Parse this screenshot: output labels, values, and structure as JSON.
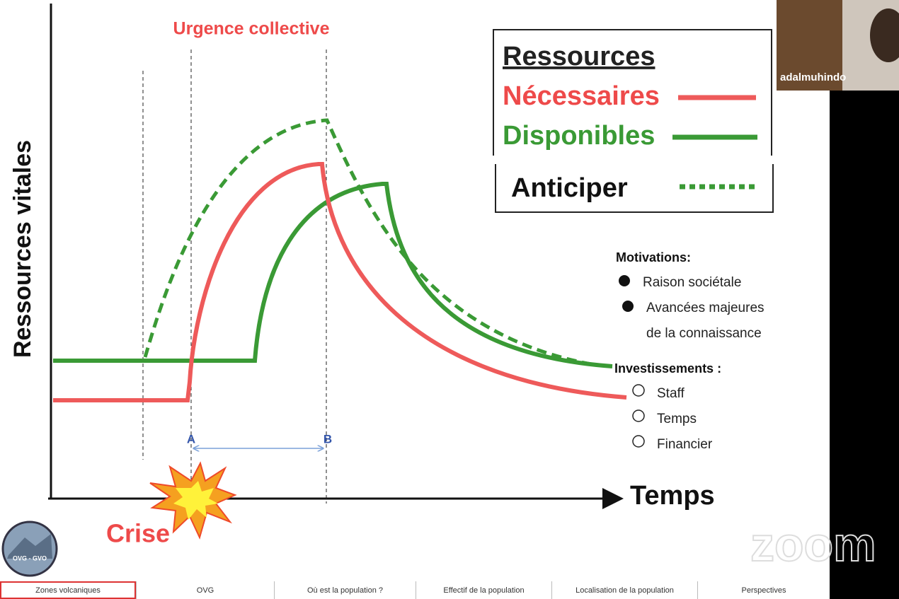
{
  "slide": {
    "title": "Urgence collective",
    "y_axis_label": "Ressources vitales",
    "x_axis_label": "Temps",
    "event": "Crise",
    "markers": [
      "A",
      "B"
    ],
    "legend": {
      "title": "Ressources",
      "items": [
        "Nécessaires",
        "Disponibles",
        "Anticiper"
      ]
    },
    "motivations": {
      "title": "Motivations:",
      "items": [
        {
          "lines": [
            "Raison sociétale"
          ]
        },
        {
          "lines": [
            "Avancées majeures",
            "de la connaissance"
          ]
        }
      ]
    },
    "investissements": {
      "title": "Investissements :",
      "items": [
        "Staff",
        "Temps",
        "Financier"
      ]
    },
    "logo": "OVG - GVO"
  },
  "participant": "adalmuhindo",
  "watermark": "zoom",
  "tabs": [
    "Zones volcaniques",
    "OVG",
    "Où est la population ?",
    "Effectif de la population",
    "Localisation de la population",
    "Perspectives"
  ]
}
